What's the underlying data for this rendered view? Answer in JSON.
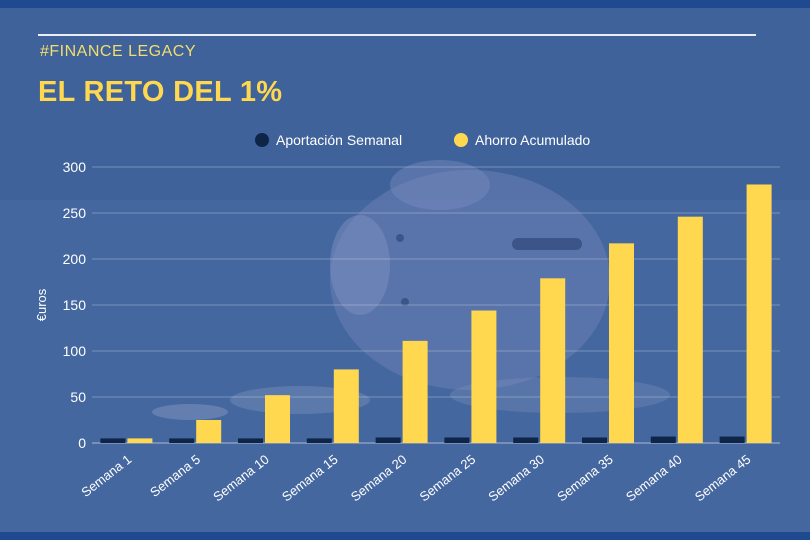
{
  "header": {
    "brand": "#FINANCE LEGACY",
    "title": "EL RETO DEL 1%"
  },
  "colors": {
    "background": "#3f629a",
    "accent_yellow": "#ffd84f",
    "series_weekly": "#0e2547",
    "series_accumulated": "#ffd84f",
    "text": "#ffffff"
  },
  "chart_data": {
    "type": "bar",
    "title": "",
    "xlabel": "",
    "ylabel": "€uros",
    "ylim": [
      0,
      300
    ],
    "yticks": [
      0,
      50,
      100,
      150,
      200,
      250,
      300
    ],
    "grid": true,
    "legend_position": "top-center",
    "categories": [
      "Semana 1",
      "Semana 5",
      "Semana 10",
      "Semana 15",
      "Semana 20",
      "Semana 25",
      "Semana 30",
      "Semana 35",
      "Semana 40",
      "Semana 45"
    ],
    "series": [
      {
        "name": "Aportación Semanal",
        "color": "#0e2547",
        "values": [
          5,
          5,
          5,
          5,
          6,
          6,
          6,
          6,
          7,
          7
        ]
      },
      {
        "name": "Ahorro Acumulado",
        "color": "#ffd84f",
        "values": [
          5,
          25,
          52,
          80,
          111,
          144,
          179,
          217,
          246,
          281
        ]
      }
    ]
  }
}
